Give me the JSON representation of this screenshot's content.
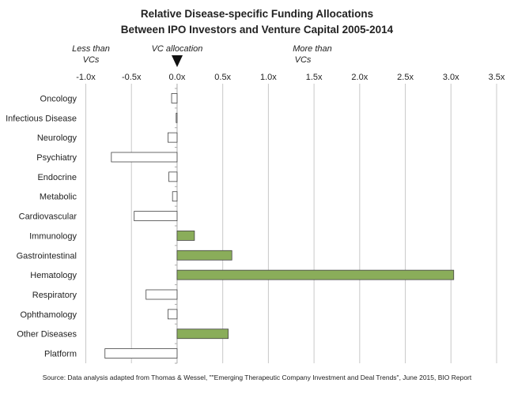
{
  "chart_data": {
    "type": "bar",
    "orientation": "horizontal",
    "title": [
      "Relative Disease-specific Funding Allocations",
      "Between IPO Investors and Venture Capital 2005-2014"
    ],
    "xlabel": "",
    "ylabel": "",
    "xlim": [
      -1.0,
      3.5
    ],
    "xticks": [
      -1.0,
      -0.5,
      0.0,
      0.5,
      1.0,
      1.5,
      2.0,
      2.5,
      3.0,
      3.5
    ],
    "xtick_labels": [
      "-1.0x",
      "-0.5x",
      "0.0x",
      "0.5x",
      "1.0x",
      "1.5x",
      "2.0x",
      "2.5x",
      "3.0x",
      "3.5x"
    ],
    "grid": true,
    "annotations": {
      "less": [
        "Less than",
        "VCs"
      ],
      "vc": "VC allocation",
      "more": [
        "More than",
        "VCs"
      ]
    },
    "categories": [
      "Oncology",
      "Infectious Disease",
      "Neurology",
      "Psychiatry",
      "Endocrine",
      "Metabolic",
      "Cardiovascular",
      "Immunology",
      "Gastrointestinal",
      "Hematology",
      "Respiratory",
      "Ophthamology",
      "Other Diseases",
      "Platform"
    ],
    "values": [
      -0.06,
      -0.01,
      -0.1,
      -0.72,
      -0.09,
      -0.05,
      -0.47,
      0.19,
      0.6,
      3.03,
      -0.34,
      -0.1,
      0.56,
      -0.79
    ],
    "colors": {
      "positive": "#8aad5a",
      "negative": "#ffffff",
      "outline": "#444444"
    },
    "source": "Source: Data analysis adapted from Thomas & Wessel, \"\"Emerging Therapeutic Company Investment and Deal Trends\", June 2015, BIO Report"
  }
}
